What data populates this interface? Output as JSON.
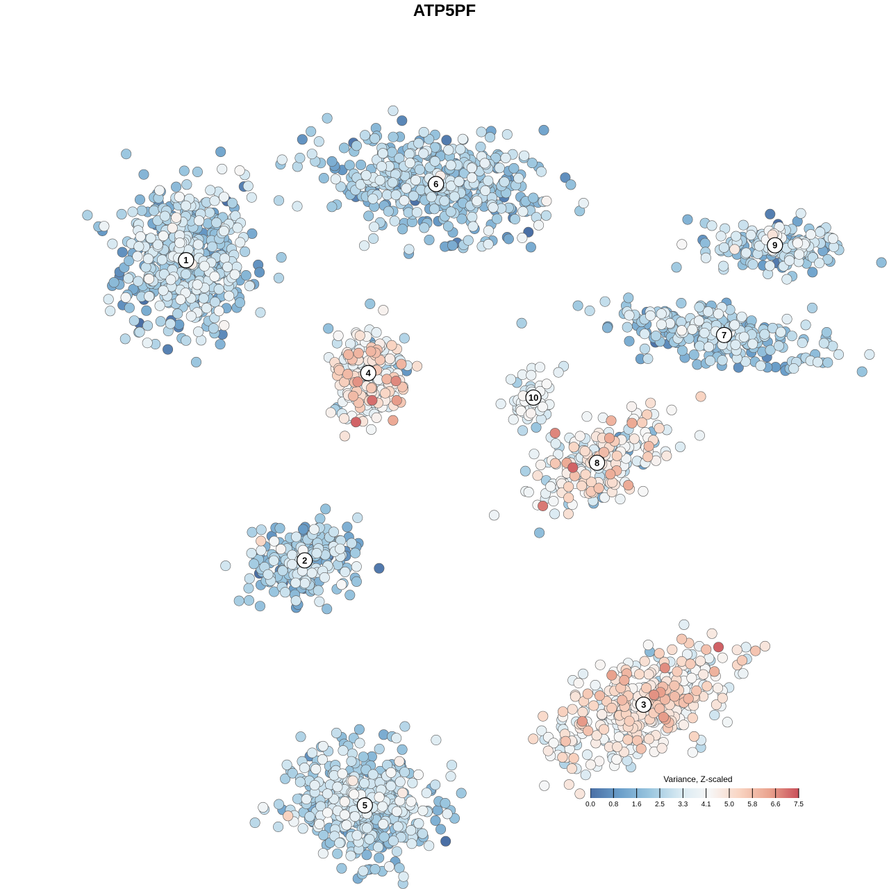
{
  "chart_data": {
    "type": "scatter",
    "title": "ATP5PF",
    "xlabel": "",
    "ylabel": "",
    "grid": false,
    "color_scale": {
      "title": "Variance, Z-scaled",
      "ticks": [
        "0.0",
        "0.8",
        "1.6",
        "2.5",
        "3.3",
        "4.1",
        "5.0",
        "5.8",
        "6.6",
        "7.5"
      ],
      "min": 0.0,
      "max": 7.5,
      "colors": [
        "#4a6fa5",
        "#6b9fca",
        "#9ac6df",
        "#d7e9f2",
        "#f7f7f7",
        "#f9d5c3",
        "#eaa48f",
        "#c9505a"
      ],
      "legend_position": "bottom-right"
    },
    "clusters": [
      {
        "label": "1",
        "x": -6.1,
        "y": 3.26,
        "mean_value": 2.3
      },
      {
        "label": "2",
        "x": -3.3,
        "y": -3.6,
        "mean_value": 2.2
      },
      {
        "label": "3",
        "x": 4.7,
        "y": -6.9,
        "mean_value": 4.4
      },
      {
        "label": "4",
        "x": -1.8,
        "y": 0.68,
        "mean_value": 4.1
      },
      {
        "label": "5",
        "x": -1.88,
        "y": -9.2,
        "mean_value": 2.5
      },
      {
        "label": "6",
        "x": -0.2,
        "y": 5.0,
        "mean_value": 2.2
      },
      {
        "label": "7",
        "x": 6.6,
        "y": 1.55,
        "mean_value": 2.2
      },
      {
        "label": "8",
        "x": 3.6,
        "y": -1.37,
        "mean_value": 4.0
      },
      {
        "label": "9",
        "x": 7.8,
        "y": 3.6,
        "mean_value": 2.6
      },
      {
        "label": "10",
        "x": 2.1,
        "y": 0.12,
        "mean_value": 3.6
      }
    ]
  }
}
